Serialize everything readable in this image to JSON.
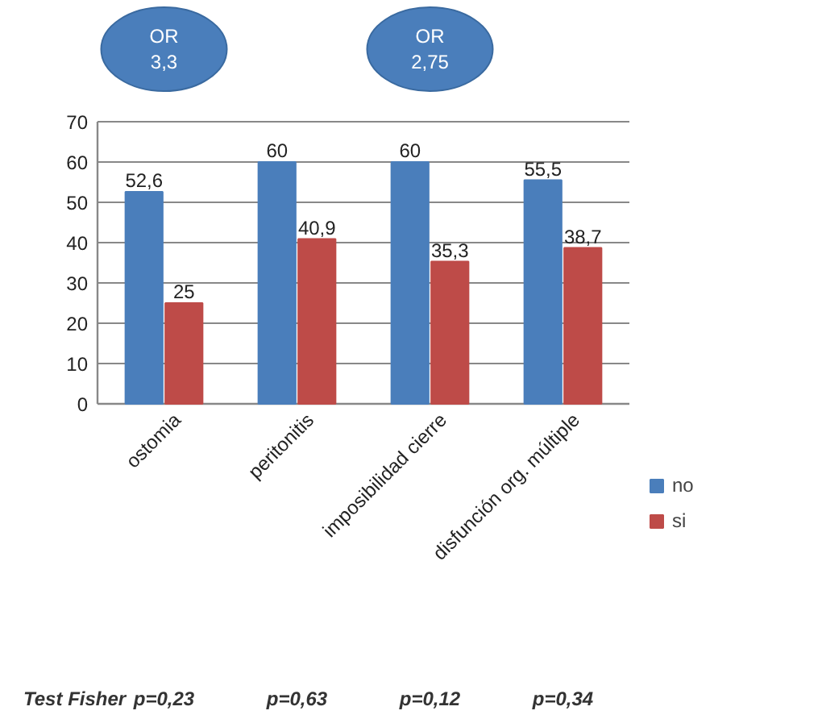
{
  "chart_data": {
    "type": "bar",
    "categories": [
      "ostomia",
      "peritonitis",
      "imposibilidad cierre",
      "disfunción org. múltiple"
    ],
    "series": [
      {
        "name": "no",
        "color": "#4a7ebb",
        "values": [
          52.6,
          60,
          60,
          55.5
        ],
        "value_labels": [
          "52,6",
          "60",
          "60",
          "55,5"
        ]
      },
      {
        "name": "si",
        "color": "#be4b48",
        "values": [
          25,
          40.9,
          35.3,
          38.7
        ],
        "value_labels": [
          "25",
          "40,9",
          "35,3",
          "38,7"
        ]
      }
    ],
    "ylim": [
      0,
      70
    ],
    "yticks": [
      0,
      10,
      20,
      30,
      40,
      50,
      60,
      70
    ],
    "grid": "y",
    "legend": "right",
    "annotations": [
      "OR\n3,3",
      "OR\n2,75",
      "Test Fisher",
      "p=0,23",
      "p=0,63",
      "p=0,12",
      "p=0,34"
    ]
  }
}
